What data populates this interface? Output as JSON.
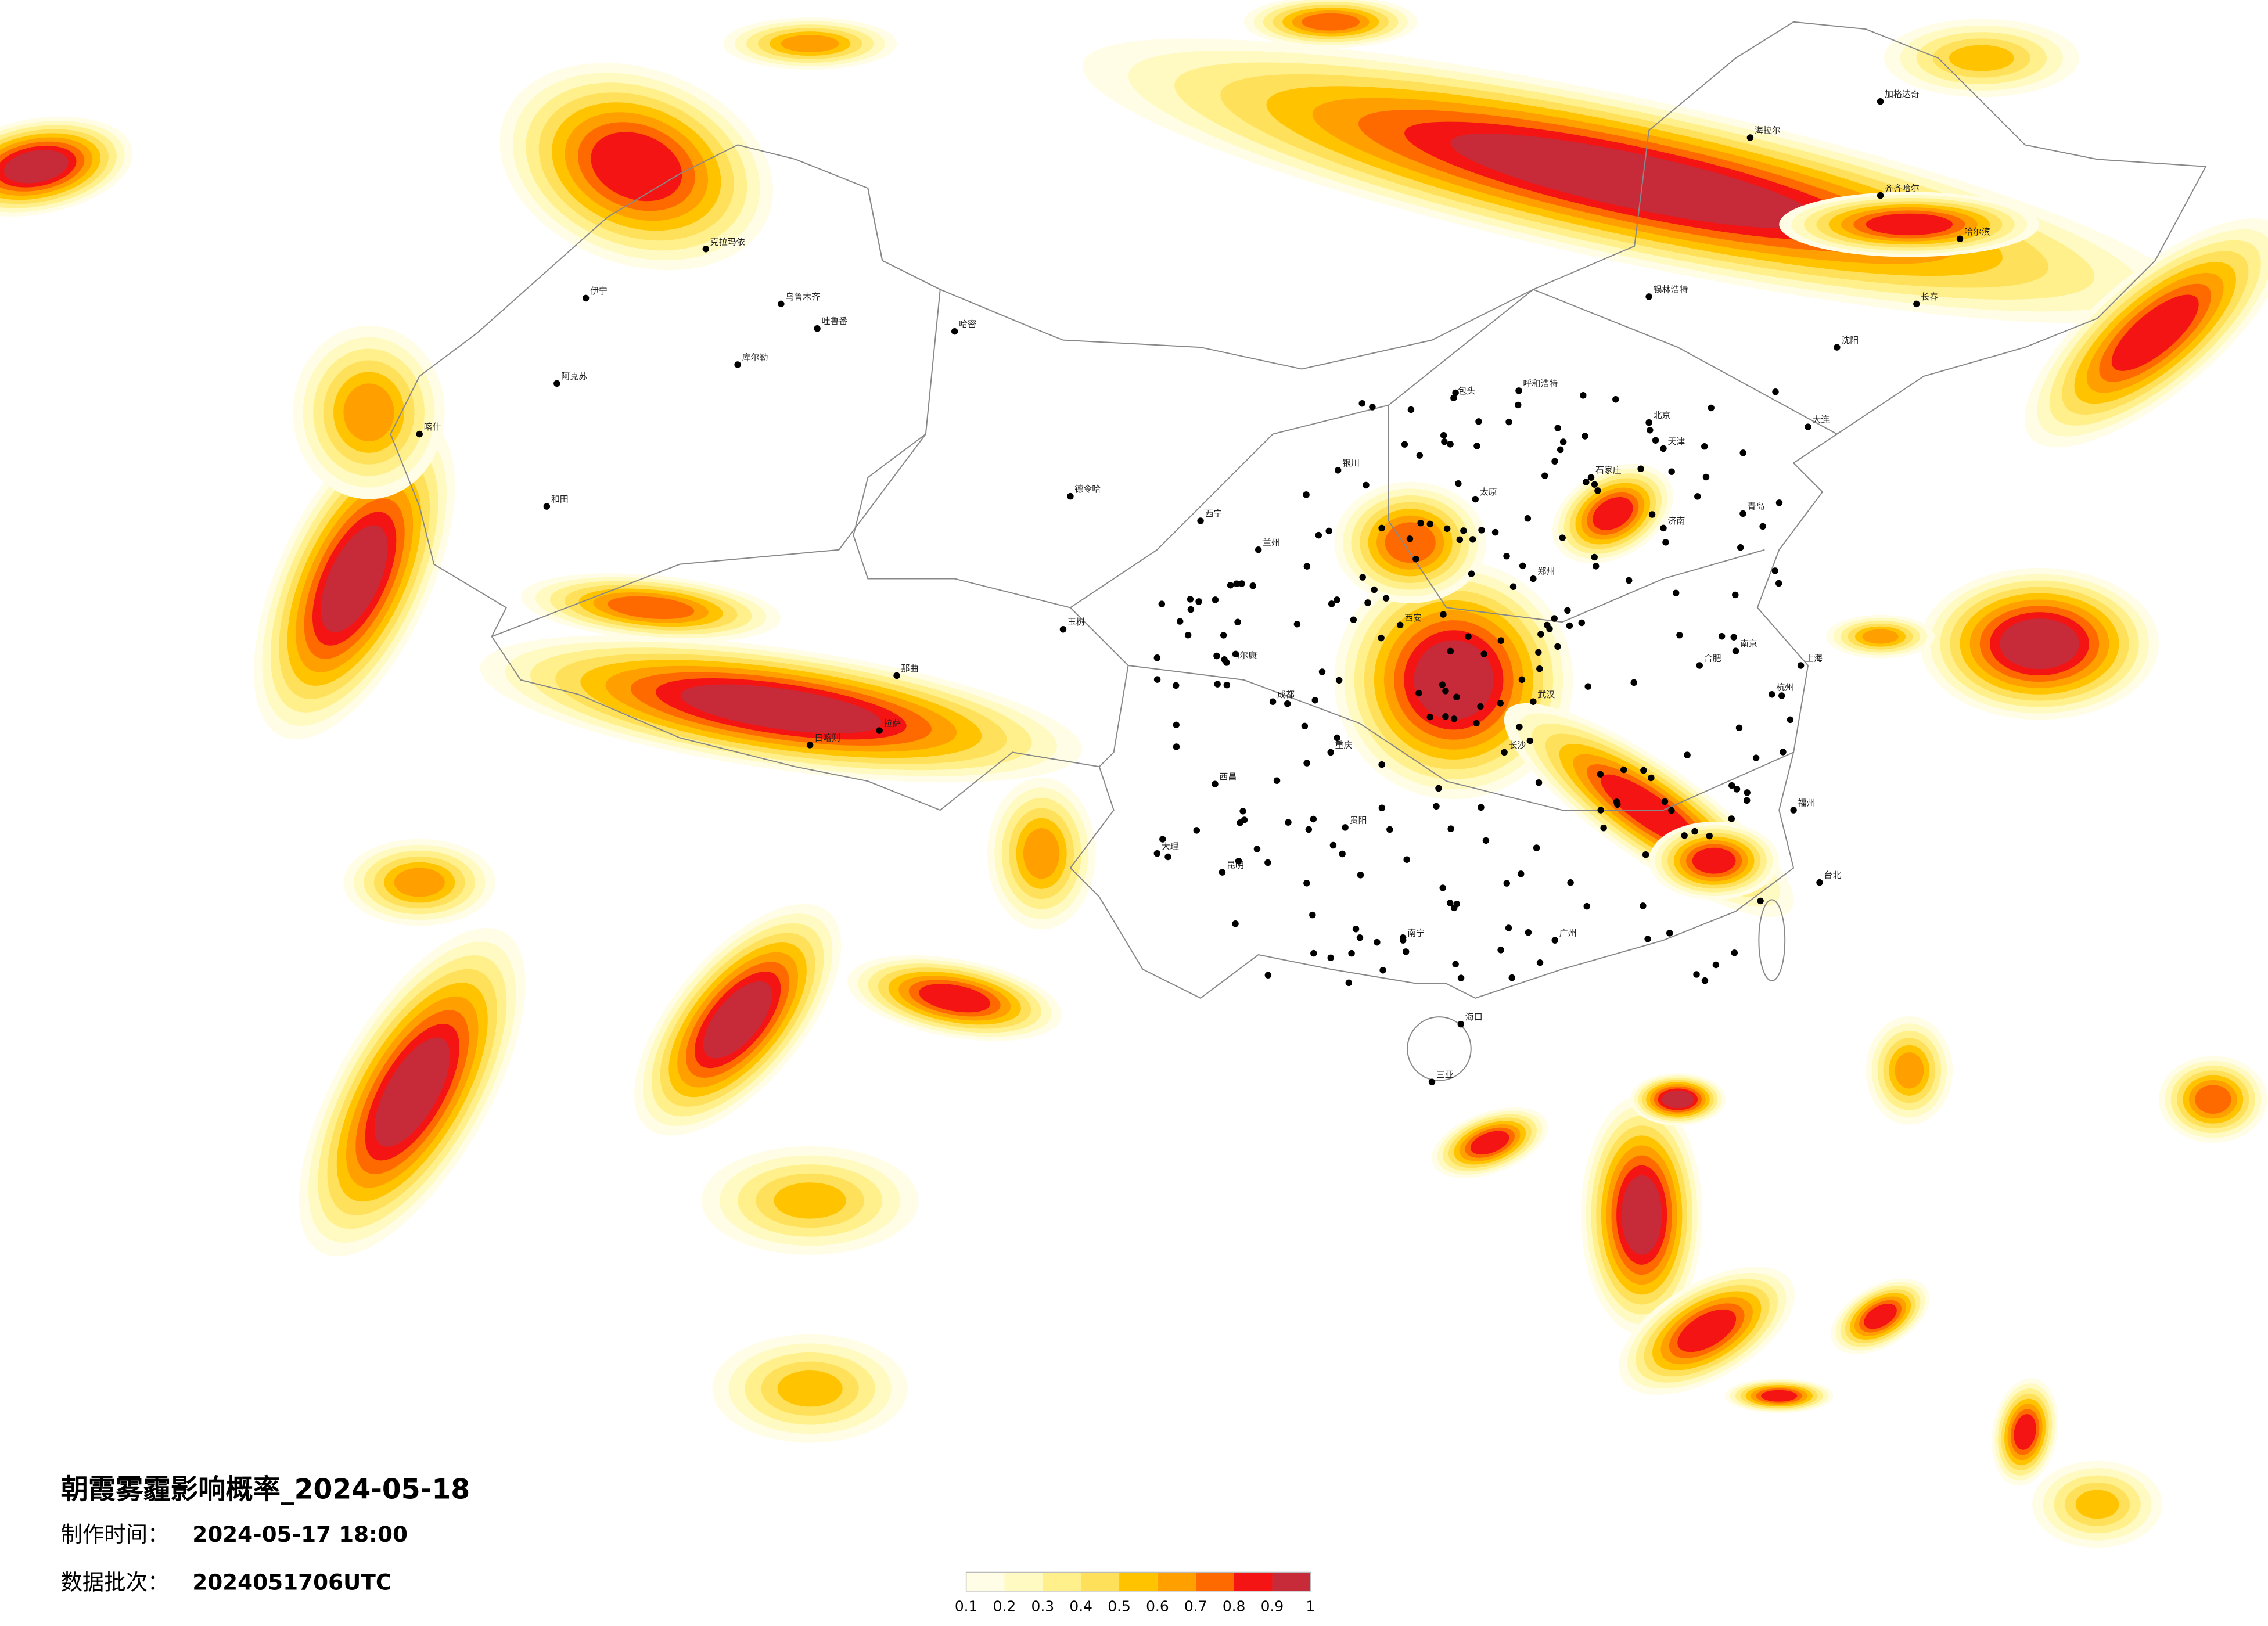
{
  "header": {
    "title": "朝霞雾霾影响概率_2024-05-18",
    "made_time_label": "制作时间：",
    "made_time": "2024-05-17 18:00",
    "batch_label": "数据批次：",
    "batch": "2024051706UTC"
  },
  "legend": {
    "ticks": [
      0.1,
      0.2,
      0.3,
      0.4,
      0.5,
      0.6,
      0.7,
      0.8,
      0.9,
      1
    ],
    "colors": [
      "#fffde6",
      "#fff9c2",
      "#fff08c",
      "#ffe05a",
      "#ffc300",
      "#ff9f00",
      "#ff6a00",
      "#f51414",
      "#c72a38"
    ]
  },
  "cities": [
    "伊宁",
    "克拉玛依",
    "乌鲁木齐",
    "吐鲁番",
    "哈密",
    "库尔勒",
    "阿克苏",
    "喀什",
    "和田",
    "德令哈",
    "那曲",
    "日喀则",
    "拉萨",
    "玉树",
    "马尔康",
    "西昌",
    "大理",
    "昆明",
    "贵阳",
    "南宁",
    "海口",
    "三亚",
    "广州",
    "长沙",
    "武汉",
    "郑州",
    "西安",
    "太原",
    "石家庄",
    "北京",
    "天津",
    "济南",
    "南京",
    "上海",
    "杭州",
    "福州",
    "台北",
    "合肥",
    "重庆",
    "成都",
    "兰州",
    "西宁",
    "银川",
    "呼和浩特",
    "包头",
    "锡林浩特",
    "沈阳",
    "长春",
    "哈尔滨",
    "齐齐哈尔",
    "海拉尔",
    "加格达奇",
    "大连",
    "青岛"
  ]
}
